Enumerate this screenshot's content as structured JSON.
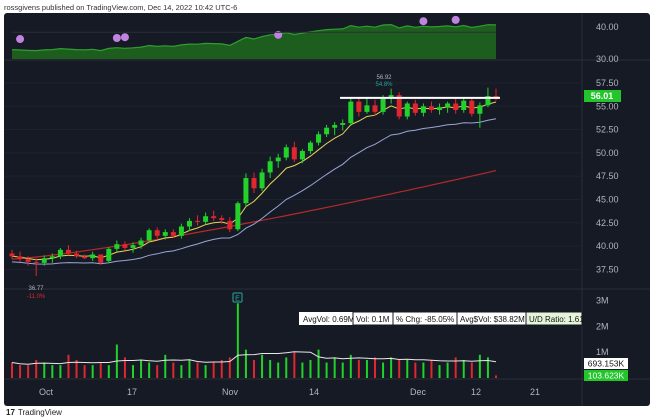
{
  "header": {
    "publisher_line": "rossgivens published on TradingView.com, Dec 14, 2022 10:42 UTC-6"
  },
  "upper_panel": {
    "ticks": [
      "40.00",
      "30.00"
    ]
  },
  "price_axis": {
    "ticks": [
      "57.50",
      "55.00",
      "52.50",
      "50.00",
      "47.50",
      "45.00",
      "42.50",
      "40.00",
      "37.50"
    ]
  },
  "volume_axis": {
    "ticks": [
      "3M",
      "2M",
      "1M"
    ]
  },
  "x_axis": {
    "ticks": [
      "Oct",
      "17",
      "Nov",
      "14",
      "Dec",
      "12",
      "21"
    ]
  },
  "badges": {
    "last_price": "56.01",
    "vol_avg": "693.153K",
    "vol_current": "103.623K"
  },
  "annotations": {
    "high_price": "56.92",
    "high_pct": "54.8%",
    "low_price": "36.77",
    "low_pct": "-11.0%",
    "event_marker": "E"
  },
  "stats": {
    "avg_vol": "AvgVol: 0.69M",
    "vol": "Vol: 0.1M",
    "pct_chg": "% Chg: -85.05%",
    "avg_dollar_vol": "Avg$Vol: $38.82M",
    "ud_ratio": "U/D Ratio: 1.61"
  },
  "footer": {
    "logo": "17",
    "brand": "TradingView"
  },
  "colors": {
    "background": "#161a25",
    "up": "#22d12a",
    "down": "#e0262e",
    "ma_fast": "#e6d75a",
    "ma_mid": "#9aa6d8",
    "ma_slow": "#b52a2a",
    "rs_line": "#2e9e2e",
    "marker": "#c084e0",
    "volume_ma": "#e8e8e8"
  },
  "chart_data": {
    "type": "candlestick",
    "ohlc": [
      {
        "o": 39.2,
        "h": 39.6,
        "l": 38.6,
        "c": 38.9
      },
      {
        "o": 38.9,
        "h": 39.4,
        "l": 38.3,
        "c": 38.6
      },
      {
        "o": 38.6,
        "h": 38.9,
        "l": 37.9,
        "c": 38.3
      },
      {
        "o": 38.3,
        "h": 38.7,
        "l": 36.8,
        "c": 38.2
      },
      {
        "o": 38.2,
        "h": 39.0,
        "l": 37.9,
        "c": 38.7
      },
      {
        "o": 38.7,
        "h": 39.2,
        "l": 38.2,
        "c": 38.9
      },
      {
        "o": 38.9,
        "h": 39.8,
        "l": 38.6,
        "c": 39.6
      },
      {
        "o": 39.6,
        "h": 40.1,
        "l": 39.0,
        "c": 39.2
      },
      {
        "o": 39.2,
        "h": 39.5,
        "l": 38.7,
        "c": 38.9
      },
      {
        "o": 38.9,
        "h": 39.1,
        "l": 38.6,
        "c": 38.7
      },
      {
        "o": 38.7,
        "h": 39.4,
        "l": 38.4,
        "c": 39.1
      },
      {
        "o": 39.1,
        "h": 38.9,
        "l": 38.0,
        "c": 38.2
      },
      {
        "o": 38.4,
        "h": 39.9,
        "l": 38.2,
        "c": 39.7
      },
      {
        "o": 39.7,
        "h": 40.6,
        "l": 39.4,
        "c": 40.2
      },
      {
        "o": 40.2,
        "h": 40.5,
        "l": 39.5,
        "c": 39.8
      },
      {
        "o": 39.8,
        "h": 40.4,
        "l": 39.3,
        "c": 40.1
      },
      {
        "o": 40.1,
        "h": 40.9,
        "l": 39.7,
        "c": 40.6
      },
      {
        "o": 40.6,
        "h": 41.9,
        "l": 40.4,
        "c": 41.7
      },
      {
        "o": 41.7,
        "h": 42.0,
        "l": 40.8,
        "c": 41.1
      },
      {
        "o": 41.1,
        "h": 41.8,
        "l": 40.7,
        "c": 41.5
      },
      {
        "o": 41.5,
        "h": 41.8,
        "l": 40.9,
        "c": 41.1
      },
      {
        "o": 41.1,
        "h": 42.4,
        "l": 40.8,
        "c": 42.1
      },
      {
        "o": 42.1,
        "h": 43.0,
        "l": 41.6,
        "c": 42.7
      },
      {
        "o": 42.7,
        "h": 43.3,
        "l": 42.2,
        "c": 42.6
      },
      {
        "o": 42.6,
        "h": 43.6,
        "l": 42.3,
        "c": 43.2
      },
      {
        "o": 43.2,
        "h": 43.8,
        "l": 42.7,
        "c": 43.0
      },
      {
        "o": 43.0,
        "h": 43.3,
        "l": 42.4,
        "c": 42.8
      },
      {
        "o": 42.7,
        "h": 43.1,
        "l": 41.5,
        "c": 41.8
      },
      {
        "o": 41.8,
        "h": 44.8,
        "l": 41.6,
        "c": 44.6
      },
      {
        "o": 44.6,
        "h": 47.8,
        "l": 44.2,
        "c": 47.3
      },
      {
        "o": 47.3,
        "h": 47.9,
        "l": 45.7,
        "c": 46.2
      },
      {
        "o": 46.2,
        "h": 48.3,
        "l": 45.9,
        "c": 47.9
      },
      {
        "o": 47.9,
        "h": 49.6,
        "l": 47.3,
        "c": 49.1
      },
      {
        "o": 49.1,
        "h": 49.9,
        "l": 48.4,
        "c": 49.5
      },
      {
        "o": 49.5,
        "h": 50.9,
        "l": 49.2,
        "c": 50.6
      },
      {
        "o": 50.6,
        "h": 51.2,
        "l": 49.0,
        "c": 49.3
      },
      {
        "o": 49.3,
        "h": 50.4,
        "l": 48.9,
        "c": 50.2
      },
      {
        "o": 50.2,
        "h": 51.3,
        "l": 49.9,
        "c": 51.1
      },
      {
        "o": 51.1,
        "h": 52.3,
        "l": 50.8,
        "c": 52.0
      },
      {
        "o": 52.0,
        "h": 53.0,
        "l": 51.7,
        "c": 52.7
      },
      {
        "o": 52.7,
        "h": 53.3,
        "l": 51.9,
        "c": 53.0
      },
      {
        "o": 53.0,
        "h": 53.6,
        "l": 52.4,
        "c": 53.2
      },
      {
        "o": 53.2,
        "h": 55.9,
        "l": 52.9,
        "c": 55.5
      },
      {
        "o": 55.5,
        "h": 56.0,
        "l": 53.9,
        "c": 54.4
      },
      {
        "o": 54.4,
        "h": 56.0,
        "l": 54.2,
        "c": 55.1
      },
      {
        "o": 55.1,
        "h": 55.7,
        "l": 54.0,
        "c": 54.4
      },
      {
        "o": 54.4,
        "h": 56.2,
        "l": 54.1,
        "c": 55.9
      },
      {
        "o": 55.9,
        "h": 56.9,
        "l": 55.3,
        "c": 56.2
      },
      {
        "o": 56.2,
        "h": 56.5,
        "l": 53.6,
        "c": 53.9
      },
      {
        "o": 53.9,
        "h": 55.5,
        "l": 53.6,
        "c": 55.3
      },
      {
        "o": 55.3,
        "h": 55.7,
        "l": 54.0,
        "c": 54.3
      },
      {
        "o": 54.3,
        "h": 55.3,
        "l": 53.9,
        "c": 55.0
      },
      {
        "o": 55.0,
        "h": 55.5,
        "l": 54.3,
        "c": 54.6
      },
      {
        "o": 54.6,
        "h": 55.3,
        "l": 54.1,
        "c": 54.9
      },
      {
        "o": 54.9,
        "h": 55.5,
        "l": 54.3,
        "c": 55.3
      },
      {
        "o": 55.3,
        "h": 55.8,
        "l": 54.2,
        "c": 54.6
      },
      {
        "o": 54.6,
        "h": 56.0,
        "l": 54.3,
        "c": 55.6
      },
      {
        "o": 55.6,
        "h": 55.9,
        "l": 53.9,
        "c": 54.2
      },
      {
        "o": 54.2,
        "h": 55.4,
        "l": 52.7,
        "c": 55.1
      },
      {
        "o": 55.1,
        "h": 57.0,
        "l": 54.9,
        "c": 56.1
      },
      {
        "o": 56.1,
        "h": 56.9,
        "l": 55.6,
        "c": 56.0
      }
    ],
    "volume_millions": [
      0.6,
      0.5,
      0.5,
      0.7,
      0.6,
      0.5,
      0.5,
      0.9,
      0.7,
      0.5,
      0.5,
      0.6,
      0.5,
      1.3,
      0.8,
      0.5,
      0.7,
      0.6,
      0.5,
      0.9,
      0.6,
      0.5,
      0.7,
      0.6,
      0.5,
      0.6,
      0.7,
      0.8,
      2.9,
      1.1,
      0.7,
      0.9,
      0.7,
      0.6,
      0.8,
      1.0,
      0.6,
      0.7,
      1.1,
      0.6,
      0.8,
      0.6,
      0.9,
      0.7,
      0.7,
      0.8,
      0.6,
      0.8,
      0.7,
      0.7,
      0.6,
      0.6,
      0.7,
      0.5,
      0.6,
      0.8,
      0.7,
      0.6,
      0.9,
      0.8,
      0.1
    ],
    "price_range": [
      35.5,
      59.0
    ],
    "volume_range": [
      0,
      3.3
    ],
    "resistance_level": 55.9
  }
}
